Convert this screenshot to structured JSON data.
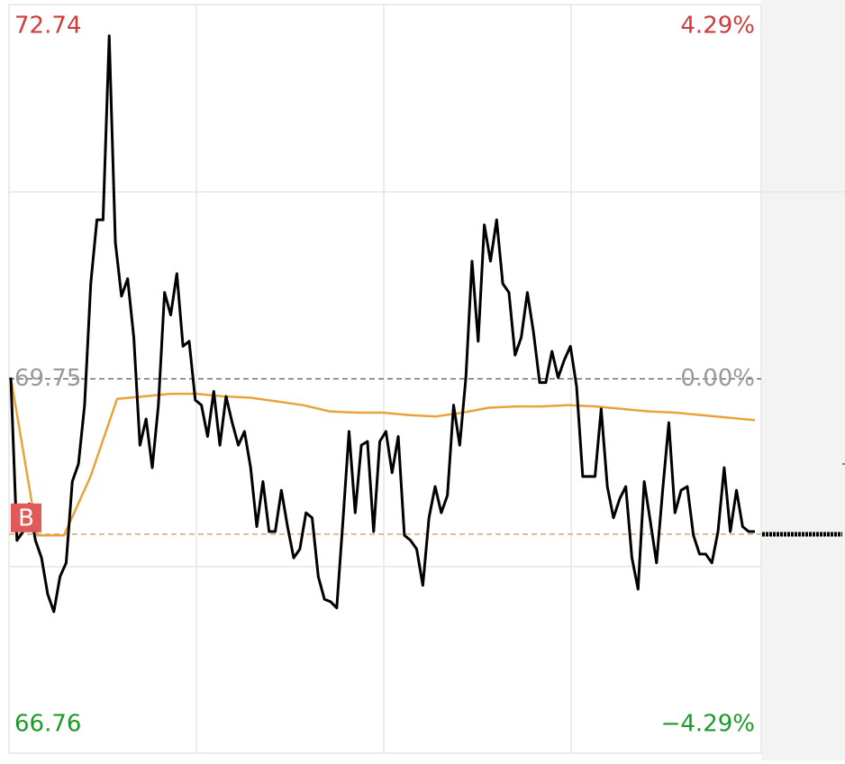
{
  "chart_data": {
    "type": "line",
    "ylim": [
      66.76,
      72.74
    ],
    "yticks": [
      72.74,
      69.75,
      66.76
    ],
    "ytick_colors": [
      "#d23b3b",
      "#9a9a9a",
      "#1e9a2a"
    ],
    "y2lim": [
      -4.29,
      4.29
    ],
    "y2ticks": [
      {
        "value": 4.29,
        "label": "4.29%"
      },
      {
        "value": 0,
        "label": "0.00%"
      },
      {
        "value": -4.29,
        "label": "−4.29%"
      }
    ],
    "series": [
      {
        "color": "#000000",
        "values": [
          69.76,
          68.46,
          68.53,
          68.75,
          68.46,
          68.32,
          68.03,
          67.89,
          68.17,
          68.28,
          68.93,
          69.07,
          69.54,
          70.51,
          71.02,
          71.02,
          72.49,
          70.84,
          70.41,
          70.55,
          70.08,
          69.22,
          69.43,
          69.04,
          69.54,
          70.44,
          70.26,
          70.59,
          70.01,
          70.05,
          69.58,
          69.54,
          69.29,
          69.65,
          69.22,
          69.61,
          69.4,
          69.22,
          69.33,
          69.04,
          68.57,
          68.93,
          68.53,
          68.53,
          68.86,
          68.57,
          68.32,
          68.39,
          68.68,
          68.64,
          68.17,
          67.99,
          67.97,
          67.92,
          68.61,
          69.33,
          68.68,
          69.22,
          69.25,
          68.53,
          69.25,
          69.33,
          69.0,
          69.29,
          68.5,
          68.46,
          68.39,
          68.1,
          68.64,
          68.89,
          68.68,
          68.82,
          69.54,
          69.22,
          69.76,
          70.69,
          70.05,
          70.98,
          70.69,
          71.02,
          70.51,
          70.44,
          69.94,
          70.08,
          70.44,
          70.12,
          69.72,
          69.72,
          69.97,
          69.76,
          69.9,
          70.01,
          69.69,
          68.97,
          68.97,
          68.97,
          69.51,
          68.89,
          68.64,
          68.79,
          68.89,
          68.32,
          68.07,
          68.93,
          68.61,
          68.28,
          68.86,
          69.4,
          68.68,
          68.86,
          68.89,
          68.5,
          68.35,
          68.35,
          68.28,
          68.53,
          69.04,
          68.53,
          68.86,
          68.57,
          68.53,
          68.53
        ]
      },
      {
        "color": "#e8a33a",
        "values": [
          69.76,
          68.5,
          68.5,
          68.97,
          69.59,
          69.61,
          69.63,
          69.63,
          69.61,
          69.6,
          69.57,
          69.54,
          69.49,
          69.48,
          69.48,
          69.46,
          69.45,
          69.48,
          69.52,
          69.53,
          69.53,
          69.54,
          69.53,
          69.51,
          69.49,
          69.48,
          69.46,
          69.44,
          69.42
        ]
      }
    ],
    "buy_marker": {
      "label": "B",
      "value": 68.51,
      "color": "#e05a5a",
      "line_color": "#d9a57a"
    }
  }
}
